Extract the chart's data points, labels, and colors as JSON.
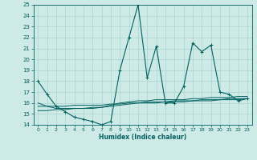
{
  "xlabel": "Humidex (Indice chaleur)",
  "background_color": "#ceeae7",
  "grid_color": "#aad4d0",
  "line_color": "#006060",
  "xlim": [
    -0.5,
    23.5
  ],
  "ylim": [
    14,
    25
  ],
  "xticks": [
    0,
    1,
    2,
    3,
    4,
    5,
    6,
    7,
    8,
    9,
    10,
    11,
    12,
    13,
    14,
    15,
    16,
    17,
    18,
    19,
    20,
    21,
    22,
    23
  ],
  "yticks": [
    14,
    15,
    16,
    17,
    18,
    19,
    20,
    21,
    22,
    23,
    24,
    25
  ],
  "series_spiky": [
    18.0,
    16.8,
    15.7,
    15.2,
    14.7,
    14.5,
    14.3,
    14.0,
    14.3,
    19.0,
    22.0,
    25.0,
    18.3,
    21.2,
    16.0,
    16.0,
    17.5,
    21.5,
    20.7,
    21.3,
    17.0,
    16.8,
    16.2,
    16.4
  ],
  "series_smooth1": [
    16.0,
    15.7,
    15.5,
    15.5,
    15.5,
    15.5,
    15.5,
    15.6,
    15.8,
    16.0,
    16.1,
    16.2,
    16.2,
    16.3,
    16.3,
    16.3,
    16.3,
    16.4,
    16.4,
    16.5,
    16.5,
    16.5,
    16.6,
    16.6
  ],
  "series_smooth2": [
    15.3,
    15.3,
    15.4,
    15.4,
    15.5,
    15.5,
    15.6,
    15.6,
    15.7,
    15.8,
    15.9,
    16.0,
    16.0,
    16.0,
    16.1,
    16.1,
    16.1,
    16.2,
    16.2,
    16.2,
    16.3,
    16.3,
    16.3,
    16.4
  ],
  "series_smooth3": [
    15.7,
    15.7,
    15.7,
    15.7,
    15.8,
    15.8,
    15.8,
    15.8,
    15.9,
    15.9,
    16.0,
    16.0,
    16.1,
    16.1,
    16.1,
    16.2,
    16.2,
    16.2,
    16.3,
    16.3,
    16.3,
    16.4,
    16.4,
    16.4
  ]
}
